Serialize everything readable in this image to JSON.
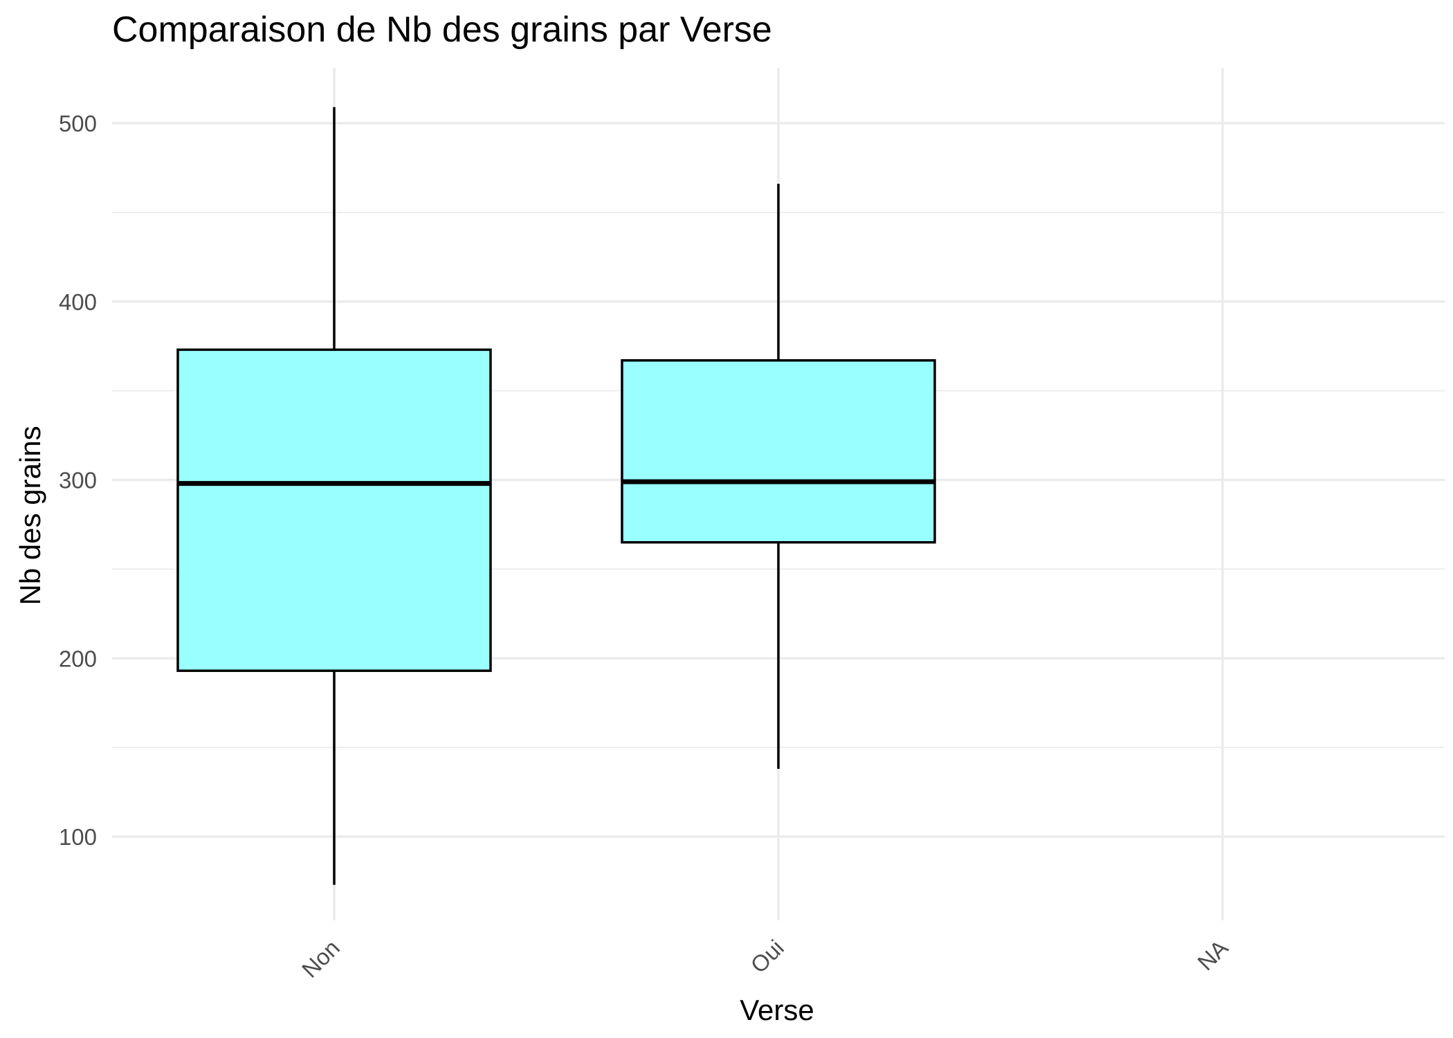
{
  "chart_data": {
    "type": "boxplot",
    "title": "Comparaison de Nb des grains par Verse",
    "xlabel": "Verse",
    "ylabel": "Nb des grains",
    "categories": [
      "Non",
      "Oui",
      "NA"
    ],
    "boxes": [
      {
        "category": "Non",
        "min": 73,
        "q1": 193,
        "median": 298,
        "q3": 373,
        "max": 509
      },
      {
        "category": "Oui",
        "min": 138,
        "q1": 265,
        "median": 299,
        "q3": 367,
        "max": 466
      }
    ],
    "ylim": [
      50,
      530
    ],
    "yticks": [
      100,
      200,
      300,
      400,
      500
    ],
    "fill_color": "#99FFFF",
    "grid": true,
    "legend": "none"
  }
}
